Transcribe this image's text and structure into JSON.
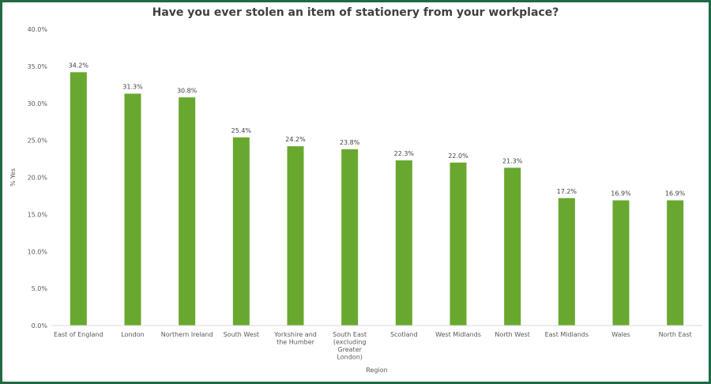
{
  "chart_data": {
    "type": "bar",
    "title": "Have you ever stolen an item of stationery from your workplace?",
    "xlabel": "Region",
    "ylabel": "% Yes",
    "ylim": [
      0,
      40
    ],
    "ytick_step": 5,
    "ytick_labels": [
      "0.0%",
      "5.0%",
      "10.0%",
      "15.0%",
      "20.0%",
      "25.0%",
      "30.0%",
      "35.0%",
      "40.0%"
    ],
    "categories": [
      [
        "East of England"
      ],
      [
        "London"
      ],
      [
        "Northern Ireland"
      ],
      [
        "South West"
      ],
      [
        "Yorkshire and",
        "the Humber"
      ],
      [
        "South East",
        "(excluding",
        "Greater",
        "London)"
      ],
      [
        "Scotland"
      ],
      [
        "West Midlands"
      ],
      [
        "North West"
      ],
      [
        "East Midlands"
      ],
      [
        "Wales"
      ],
      [
        "North East"
      ]
    ],
    "values": [
      34.2,
      31.3,
      30.8,
      25.4,
      24.2,
      23.8,
      22.3,
      22.0,
      21.3,
      17.2,
      16.9,
      16.9
    ],
    "value_labels": [
      "34.2%",
      "31.3%",
      "30.8%",
      "25.4%",
      "24.2%",
      "23.8%",
      "22.3%",
      "22.0%",
      "21.3%",
      "17.2%",
      "16.9%",
      "16.9%"
    ],
    "grid": false,
    "bar_color": "#68a82f",
    "frame_color": "#1e6b45"
  }
}
